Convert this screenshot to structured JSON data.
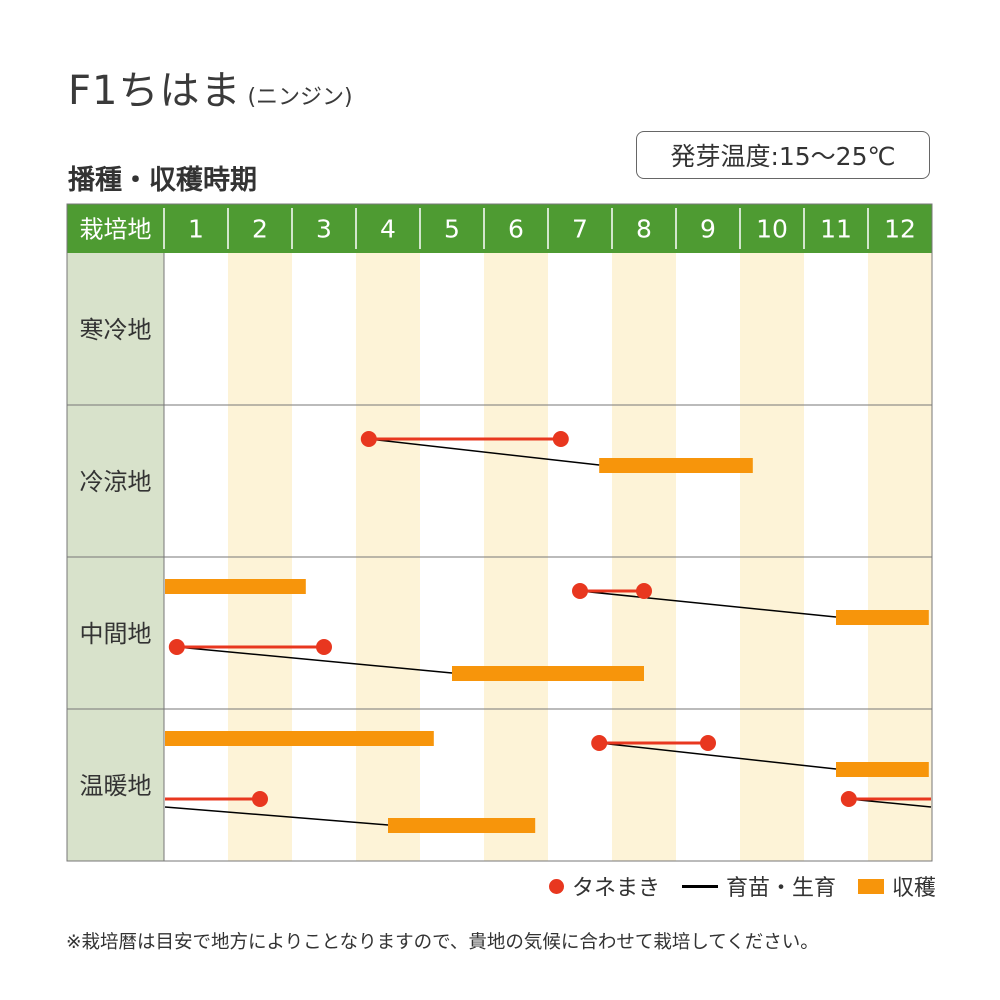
{
  "header": {
    "title": "F1ちはま",
    "subtitle": "(ニンジン)",
    "temp_label": "発芽温度:15～25℃",
    "section_title": "播種・収穫時期"
  },
  "colors": {
    "header_bg": "#4e9b32",
    "region_bg": "#d8e2cb",
    "stripe": "#fdf3d7",
    "sow_dot": "#e8371f",
    "sow_line": "#e8371f",
    "grow_line": "#000000",
    "harvest": "#f7950b"
  },
  "chart_data": {
    "type": "gantt",
    "title": "播種・収穫時期",
    "corner_label": "栽培地",
    "months": [
      "1",
      "2",
      "3",
      "4",
      "5",
      "6",
      "7",
      "8",
      "9",
      "10",
      "11",
      "12"
    ],
    "regions": [
      {
        "name": "寒冷地",
        "items": []
      },
      {
        "name": "冷涼地",
        "items": [
          {
            "sow_from": 4.2,
            "sow_to": 7.2,
            "harvest_from": 7.8,
            "harvest_to": 10.2,
            "wrap": false
          }
        ]
      },
      {
        "name": "中間地",
        "items": [
          {
            "sow_from": 7.5,
            "sow_to": 8.5,
            "harvest_from": 11.5,
            "harvest_to": 12.95,
            "wrap": true,
            "wrap_harvest_to": 3.2
          },
          {
            "sow_from": 1.2,
            "sow_to": 3.5,
            "harvest_from": 5.5,
            "harvest_to": 8.5,
            "wrap": false
          }
        ]
      },
      {
        "name": "温暖地",
        "items": [
          {
            "sow_from": 7.8,
            "sow_to": 9.5,
            "harvest_from": 11.5,
            "harvest_to": 12.95,
            "wrap": true,
            "wrap_harvest_to": 5.2
          },
          {
            "sow_from": 11.7,
            "sow_to": 12.95,
            "harvest_from": 4.5,
            "harvest_to": 6.8,
            "wrap": true,
            "wrap_sow_to": 2.5
          }
        ]
      }
    ],
    "legend": [
      {
        "key": "sow",
        "label": "タネまき"
      },
      {
        "key": "grow",
        "label": "育苗・生育"
      },
      {
        "key": "harvest",
        "label": "収穫"
      }
    ]
  },
  "note": "※栽培暦は目安で地方によりことなりますので、貴地の気候に合わせて栽培してください。"
}
